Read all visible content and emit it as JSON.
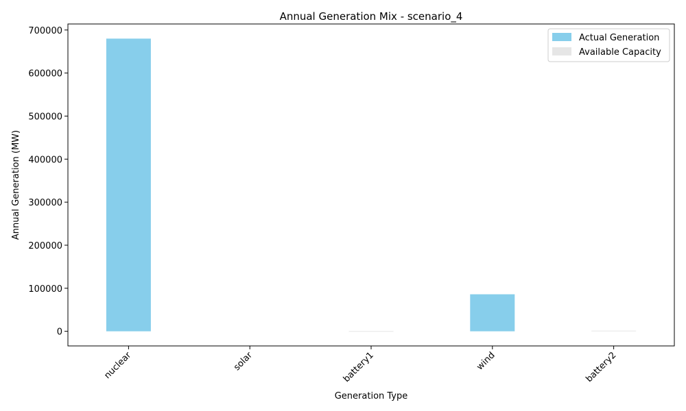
{
  "chart_data": {
    "type": "bar",
    "title": "Annual Generation Mix - scenario_4",
    "xlabel": "Generation Type",
    "ylabel": "Annual Generation (MW)",
    "categories": [
      "nuclear",
      "solar",
      "battery1",
      "wind",
      "battery2"
    ],
    "series": [
      {
        "name": "Actual Generation",
        "color": "#87ceeb",
        "values": [
          680000,
          0,
          0,
          86000,
          0
        ]
      },
      {
        "name": "Available Capacity",
        "color": "#e6e6e6",
        "values": [
          0,
          0,
          500,
          0,
          1500
        ]
      }
    ],
    "ylim": [
      -34000,
      714000
    ],
    "yticks": [
      0,
      100000,
      200000,
      300000,
      400000,
      500000,
      600000,
      700000
    ],
    "ytick_labels": [
      "0",
      "100000",
      "200000",
      "300000",
      "400000",
      "500000",
      "600000",
      "700000"
    ],
    "legend_position": "upper right",
    "grid": false
  }
}
